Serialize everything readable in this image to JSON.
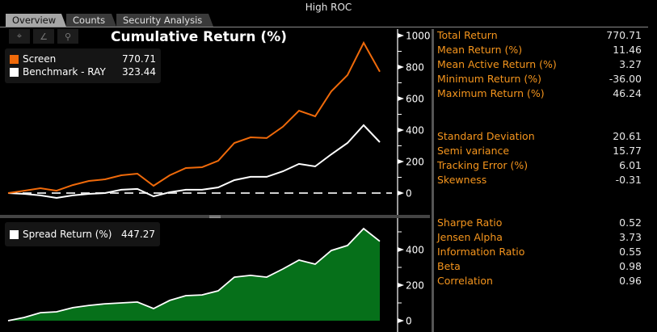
{
  "window": {
    "title": "High ROC"
  },
  "tabs": [
    {
      "label": "Overview",
      "active": true
    },
    {
      "label": "Counts",
      "active": false
    },
    {
      "label": "Security Analysis",
      "active": false
    }
  ],
  "toolbar": {
    "icons": [
      "crosshair-icon",
      "pencil-icon",
      "zoom-icon"
    ],
    "glyphs": [
      "⌖",
      "∠",
      "⚲"
    ]
  },
  "colors": {
    "screen": "#f06a0a",
    "benchmark": "#ffffff",
    "spread_fill": "#06701a",
    "label": "#f5951d"
  },
  "legend_top": {
    "items": [
      {
        "name": "Screen",
        "value": "770.71"
      },
      {
        "name": "Benchmark - RAY",
        "value": "323.44"
      }
    ]
  },
  "legend_bottom": {
    "items": [
      {
        "name": "Spread Return (%)",
        "value": "447.27"
      }
    ]
  },
  "stats": {
    "group1": [
      {
        "label": "Total Return",
        "value": "770.71"
      },
      {
        "label": "Mean Return (%)",
        "value": "11.46"
      },
      {
        "label": "Mean Active Return (%)",
        "value": "3.27"
      },
      {
        "label": "Minimum Return (%)",
        "value": "-36.00"
      },
      {
        "label": "Maximum Return (%)",
        "value": "46.24"
      }
    ],
    "group2": [
      {
        "label": "Standard Deviation",
        "value": "20.61"
      },
      {
        "label": "Semi variance",
        "value": "15.77"
      },
      {
        "label": "Tracking Error (%)",
        "value": "6.01"
      },
      {
        "label": "Skewness",
        "value": "-0.31"
      }
    ],
    "group3": [
      {
        "label": "Sharpe Ratio",
        "value": "0.52"
      },
      {
        "label": "Jensen Alpha",
        "value": "3.73"
      },
      {
        "label": "Information Ratio",
        "value": "0.55"
      },
      {
        "label": "Beta",
        "value": "0.98"
      },
      {
        "label": "Correlation",
        "value": "0.96"
      }
    ]
  },
  "chart_data": [
    {
      "type": "line",
      "title": "Cumulative Return (%)",
      "xlabel": "",
      "ylabel": "",
      "ylim": [
        0,
        1000
      ],
      "yticks": [
        0,
        200,
        400,
        600,
        800,
        1000
      ],
      "reference_line": 0,
      "series": [
        {
          "name": "Screen",
          "values": [
            0,
            15,
            31,
            15,
            51,
            77,
            87,
            113,
            123,
            46,
            113,
            159,
            164,
            205,
            318,
            354,
            349,
            421,
            523,
            487,
            646,
            749,
            954,
            771
          ]
        },
        {
          "name": "Benchmark - RAY",
          "values": [
            0,
            -5,
            -15,
            -31,
            -15,
            -5,
            0,
            21,
            26,
            -21,
            5,
            21,
            21,
            36,
            82,
            103,
            103,
            138,
            185,
            169,
            246,
            318,
            431,
            323
          ]
        }
      ],
      "legend": "top-left"
    },
    {
      "type": "area",
      "title": "",
      "xlabel": "",
      "ylabel": "",
      "ylim": [
        0,
        500
      ],
      "yticks": [
        0,
        200,
        400
      ],
      "series": [
        {
          "name": "Spread Return (%)",
          "values": [
            0,
            18,
            45,
            50,
            73,
            86,
            95,
            100,
            105,
            68,
            114,
            141,
            145,
            168,
            245,
            255,
            245,
            291,
            341,
            318,
            395,
            423,
            518,
            447
          ]
        }
      ],
      "legend": "top-left"
    }
  ]
}
